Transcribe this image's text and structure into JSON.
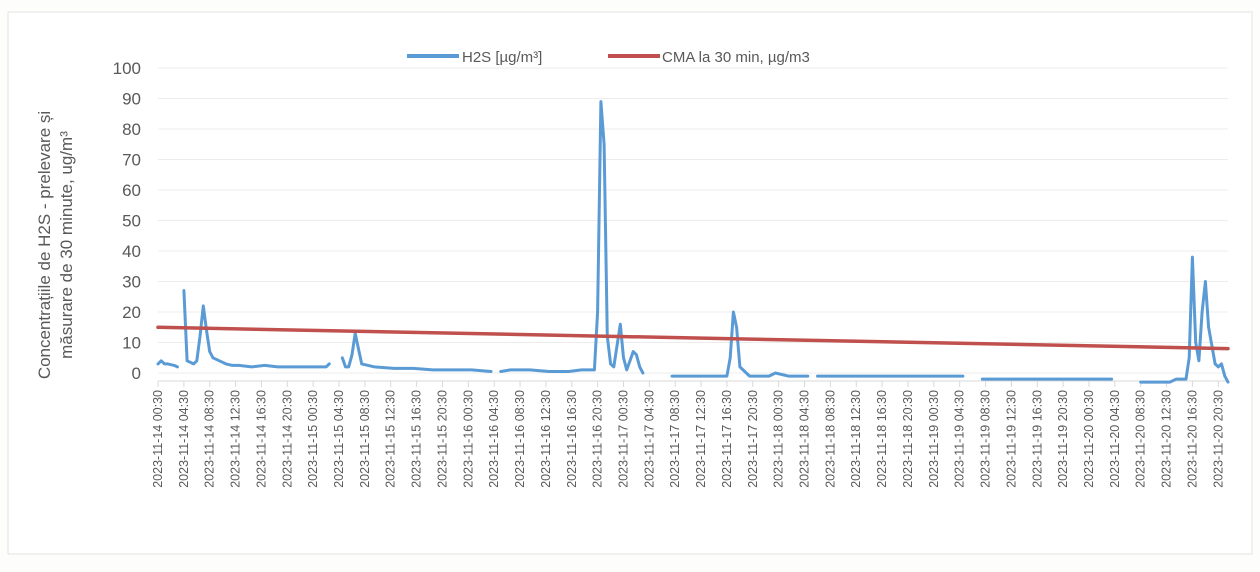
{
  "chart_data": {
    "type": "line",
    "title": "",
    "xlabel": "",
    "ylabel_line1": "Concentrațiile de H2S - prelevare și",
    "ylabel_line2": "măsurare de 30 minute, ug/m³",
    "ylim": [
      0,
      100
    ],
    "yticks": [
      0,
      10,
      20,
      30,
      40,
      50,
      60,
      70,
      80,
      90,
      100
    ],
    "grid": true,
    "legend_position": "top-center",
    "x_tick_labels": [
      "2023-11-14 00:30",
      "2023-11-14 04:30",
      "2023-11-14 08:30",
      "2023-11-14 12:30",
      "2023-11-14 16:30",
      "2023-11-14 20:30",
      "2023-11-15 00:30",
      "2023-11-15 04:30",
      "2023-11-15 08:30",
      "2023-11-15 12:30",
      "2023-11-15 16:30",
      "2023-11-15 20:30",
      "2023-11-16 00:30",
      "2023-11-16 04:30",
      "2023-11-16 08:30",
      "2023-11-16 12:30",
      "2023-11-16 16:30",
      "2023-11-16 20:30",
      "2023-11-17 00:30",
      "2023-11-17 04:30",
      "2023-11-17 08:30",
      "2023-11-17 12:30",
      "2023-11-17 16:30",
      "2023-11-17 20:30",
      "2023-11-18 00:30",
      "2023-11-18 04:30",
      "2023-11-18 08:30",
      "2023-11-18 12:30",
      "2023-11-18 16:30",
      "2023-11-18 20:30",
      "2023-11-19 00:30",
      "2023-11-19 04:30",
      "2023-11-19 08:30",
      "2023-11-19 12:30",
      "2023-11-19 16:30",
      "2023-11-19 20:30",
      "2023-11-20 00:30",
      "2023-11-20 04:30",
      "2023-11-20 08:30",
      "2023-11-20 12:30",
      "2023-11-20 16:30",
      "2023-11-20 20:30"
    ],
    "series": [
      {
        "name": "H2S [µg/m³]",
        "color": "#5b9bd5",
        "x": [
          "2023-11-14 00:30",
          "2023-11-14 01:00",
          "2023-11-14 01:30",
          "2023-11-14 02:00",
          "2023-11-14 03:00",
          "2023-11-14 03:30",
          "2023-11-14 04:00",
          "2023-11-14 04:30",
          "2023-11-14 05:00",
          "2023-11-14 06:00",
          "2023-11-14 06:30",
          "2023-11-14 07:00",
          "2023-11-14 07:30",
          "2023-11-14 08:00",
          "2023-11-14 08:30",
          "2023-11-14 09:00",
          "2023-11-14 10:00",
          "2023-11-14 11:00",
          "2023-11-14 12:00",
          "2023-11-14 13:00",
          "2023-11-14 15:00",
          "2023-11-14 17:00",
          "2023-11-14 19:00",
          "2023-11-14 21:00",
          "2023-11-14 23:00",
          "2023-11-15 01:00",
          "2023-11-15 02:30",
          "2023-11-15 03:00",
          "2023-11-15 04:30",
          "2023-11-15 05:00",
          "2023-11-15 05:30",
          "2023-11-15 06:00",
          "2023-11-15 06:30",
          "2023-11-15 07:00",
          "2023-11-15 08:00",
          "2023-11-15 10:00",
          "2023-11-15 13:00",
          "2023-11-15 16:00",
          "2023-11-15 19:00",
          "2023-11-15 22:00",
          "2023-11-16 01:00",
          "2023-11-16 04:00",
          "2023-11-16 05:00",
          "2023-11-16 05:30",
          "2023-11-16 07:00",
          "2023-11-16 10:00",
          "2023-11-16 13:00",
          "2023-11-16 16:00",
          "2023-11-16 18:00",
          "2023-11-16 20:00",
          "2023-11-16 20:30",
          "2023-11-16 21:00",
          "2023-11-16 21:30",
          "2023-11-16 22:00",
          "2023-11-16 22:30",
          "2023-11-16 23:00",
          "2023-11-17 00:00",
          "2023-11-17 00:30",
          "2023-11-17 01:00",
          "2023-11-17 01:30",
          "2023-11-17 02:00",
          "2023-11-17 02:30",
          "2023-11-17 03:00",
          "2023-11-17 03:30",
          "2023-11-17 04:00",
          "2023-11-17 05:00",
          "2023-11-17 05:30",
          "2023-11-17 08:00",
          "2023-11-17 11:00",
          "2023-11-17 14:00",
          "2023-11-17 16:30",
          "2023-11-17 17:00",
          "2023-11-17 17:30",
          "2023-11-17 18:00",
          "2023-11-17 18:30",
          "2023-11-17 20:00",
          "2023-11-17 23:00",
          "2023-11-18 00:00",
          "2023-11-18 02:00",
          "2023-11-18 05:00",
          "2023-11-18 06:00",
          "2023-11-18 06:30",
          "2023-11-18 09:00",
          "2023-11-18 13:00",
          "2023-11-18 17:00",
          "2023-11-18 21:00",
          "2023-11-19 01:00",
          "2023-11-19 05:00",
          "2023-11-19 07:30",
          "2023-11-19 08:00",
          "2023-11-19 12:00",
          "2023-11-19 16:00",
          "2023-11-19 20:00",
          "2023-11-20 00:00",
          "2023-11-20 04:00",
          "2023-11-20 08:00",
          "2023-11-20 08:30",
          "2023-11-20 11:00",
          "2023-11-20 13:00",
          "2023-11-20 14:00",
          "2023-11-20 15:00",
          "2023-11-20 15:30",
          "2023-11-20 16:00",
          "2023-11-20 16:30",
          "2023-11-20 17:00",
          "2023-11-20 17:30",
          "2023-11-20 18:00",
          "2023-11-20 18:30",
          "2023-11-20 19:00",
          "2023-11-20 20:00",
          "2023-11-20 20:30",
          "2023-11-20 21:00",
          "2023-11-20 21:30",
          "2023-11-20 22:00"
        ],
        "values": [
          3,
          4,
          3,
          3,
          2.5,
          2,
          null,
          27,
          4,
          3,
          4,
          12,
          22,
          14,
          7,
          5,
          4,
          3,
          2.5,
          2.5,
          2,
          2.5,
          2,
          2,
          2,
          2,
          2,
          3,
          null,
          5,
          2,
          2,
          6,
          13,
          3,
          2,
          1.5,
          1.5,
          1,
          1,
          1,
          0.5,
          null,
          0.5,
          1,
          1,
          0.5,
          0.5,
          1,
          1,
          20,
          89,
          75,
          12,
          3,
          2,
          16,
          5,
          1,
          4,
          7,
          6,
          2,
          0,
          null,
          2,
          null,
          -1,
          -1,
          -1,
          -1,
          5,
          20,
          15,
          2,
          -1,
          -1,
          0,
          -1,
          -1,
          null,
          -1,
          -1,
          -1,
          -1,
          -1,
          -1,
          -1,
          null,
          -2,
          -2,
          -2,
          -2,
          -2,
          -2,
          null,
          -3,
          -3,
          -3,
          -2,
          -2,
          -2,
          5,
          38,
          10,
          4,
          20,
          30,
          15,
          3,
          2,
          3,
          -1,
          -3
        ]
      },
      {
        "name": "CMA la 30 min, µg/m3",
        "color": "#c0504d",
        "x": [
          "2023-11-14 00:30",
          "2023-11-20 22:00"
        ],
        "values": [
          15,
          8
        ]
      }
    ]
  }
}
